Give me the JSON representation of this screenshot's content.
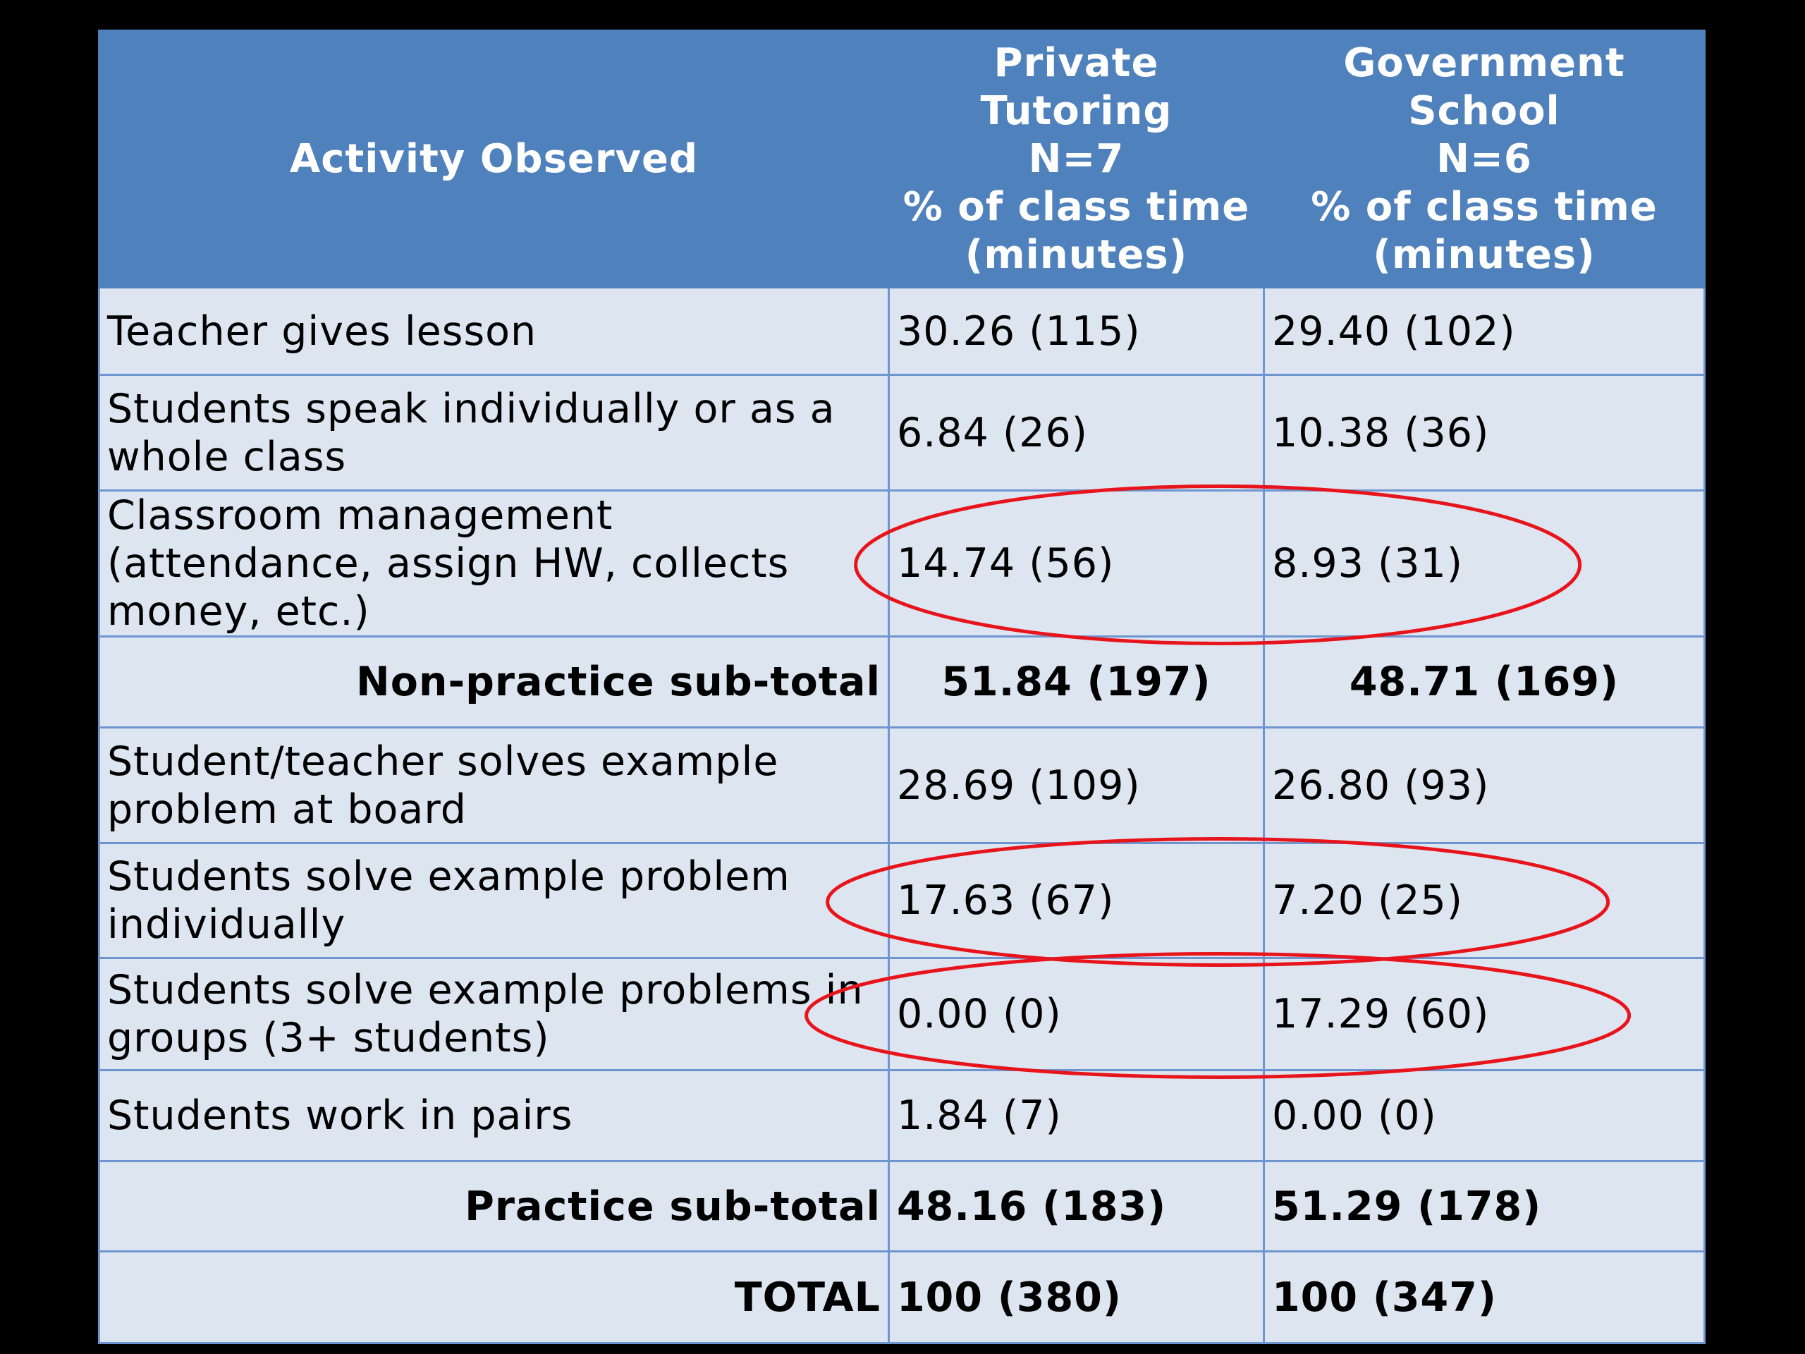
{
  "chart_data": {
    "type": "table",
    "columns": [
      {
        "lines": [
          "Activity Observed"
        ]
      },
      {
        "lines": [
          "Private",
          "Tutoring",
          "N=7",
          "% of class time",
          "(minutes)"
        ]
      },
      {
        "lines": [
          "Government",
          "School",
          "N=6",
          "% of class time",
          "(minutes)"
        ]
      }
    ],
    "rows": [
      {
        "activity": "Teacher gives lesson",
        "private": "30.26 (115)",
        "government": "29.40 (102)"
      },
      {
        "activity": "Students speak individually or as a whole class",
        "private": "6.84 (26)",
        "government": "10.38 (36)"
      },
      {
        "activity": "Classroom management (attendance, assign HW, collects money, etc.)",
        "private": "14.74 (56)",
        "government": "8.93 (31)"
      },
      {
        "activity": "Non-practice sub-total",
        "private": "51.84 (197)",
        "government": "48.71 (169)"
      },
      {
        "activity": "Student/teacher solves example problem at board",
        "private": "28.69 (109)",
        "government": "26.80 (93)"
      },
      {
        "activity": "Students solve example problem individually",
        "private": "17.63 (67)",
        "government": "7.20 (25)"
      },
      {
        "activity": "Students solve example problems in groups (3+ students)",
        "private": "0.00 (0)",
        "government": "17.29 (60)"
      },
      {
        "activity": "Students work in pairs",
        "private": "1.84 (7)",
        "government": "0.00 (0)"
      },
      {
        "activity": "Practice sub-total",
        "private": "48.16 (183)",
        "government": "51.29 (178)"
      },
      {
        "activity": "TOTAL",
        "private": "100 (380)",
        "government": "100 (347)"
      }
    ],
    "highlighted_rows": [
      2,
      5,
      6
    ],
    "highlight_color": "#e8141c"
  },
  "colors": {
    "header_bg": "#4f81bd",
    "cell_bg": "#dde5f0",
    "border": "#6e95cf",
    "page_bg": "#000000"
  }
}
